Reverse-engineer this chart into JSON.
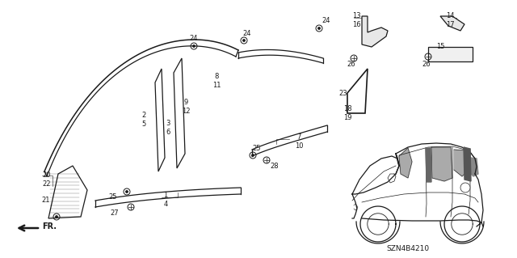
{
  "bg_color": "#ffffff",
  "fig_width": 6.4,
  "fig_height": 3.19,
  "dpi": 100,
  "watermark": "SZN4B4210",
  "lw_main": 0.9,
  "lw_thin": 0.5,
  "line_color": "#1a1a1a"
}
